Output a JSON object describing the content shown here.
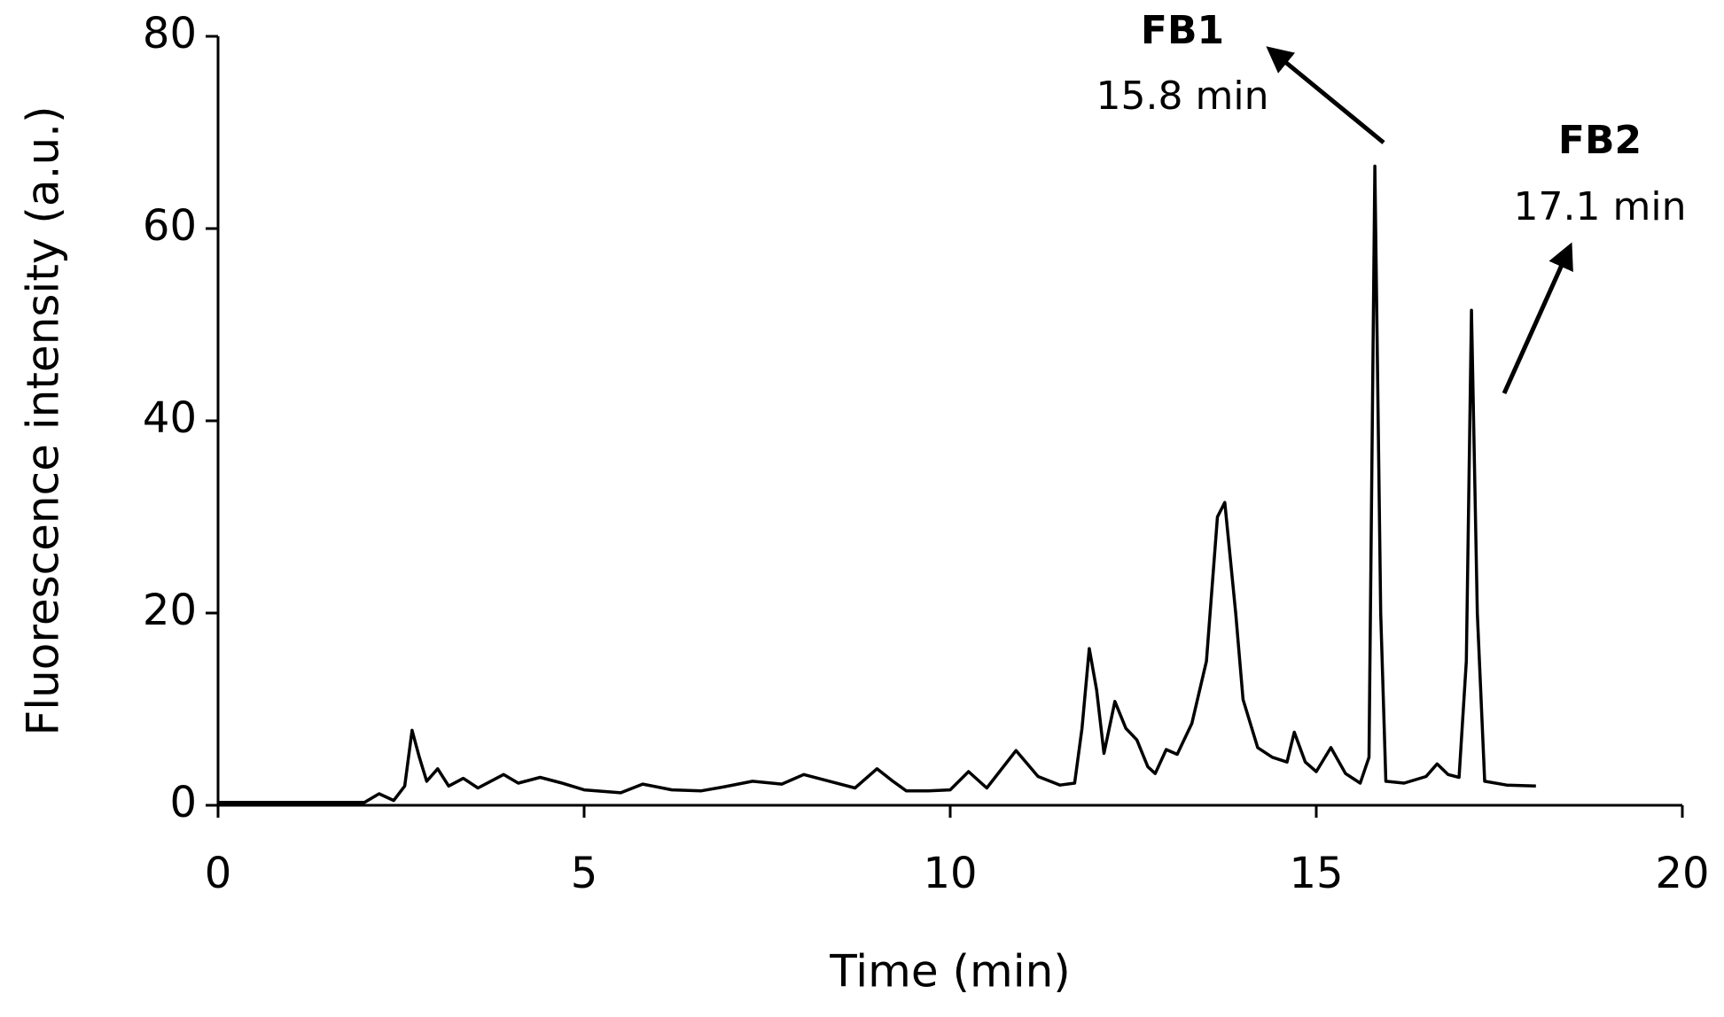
{
  "chart_data": {
    "type": "line",
    "x_label": "Time (min)",
    "y_label": "Fluorescence intensity (a.u.)",
    "x": [
      0,
      2.0,
      2.2,
      2.4,
      2.55,
      2.65,
      2.75,
      2.85,
      3.0,
      3.15,
      3.35,
      3.55,
      3.9,
      4.1,
      4.4,
      4.7,
      5.0,
      5.5,
      5.8,
      6.2,
      6.6,
      6.9,
      7.3,
      7.7,
      8.0,
      8.3,
      8.7,
      9.0,
      9.2,
      9.4,
      9.7,
      10.0,
      10.25,
      10.5,
      10.9,
      11.2,
      11.5,
      11.7,
      11.8,
      11.9,
      12.0,
      12.1,
      12.25,
      12.4,
      12.55,
      12.7,
      12.8,
      12.95,
      13.1,
      13.3,
      13.5,
      13.65,
      13.75,
      13.9,
      14.0,
      14.2,
      14.4,
      14.6,
      14.7,
      14.85,
      15.0,
      15.2,
      15.4,
      15.6,
      15.72,
      15.8,
      15.88,
      15.95,
      16.2,
      16.5,
      16.65,
      16.8,
      16.95,
      17.05,
      17.12,
      17.2,
      17.3,
      17.6,
      18.0
    ],
    "values": [
      0.3,
      0.3,
      1.2,
      0.5,
      2,
      7.8,
      5,
      2.5,
      3.8,
      2,
      2.8,
      1.8,
      3.2,
      2.3,
      2.9,
      2.3,
      1.6,
      1.3,
      2.2,
      1.6,
      1.5,
      1.9,
      2.5,
      2.2,
      3.2,
      2.6,
      1.8,
      3.8,
      2.6,
      1.5,
      1.5,
      1.6,
      3.5,
      1.8,
      5.7,
      3,
      2.1,
      2.3,
      8,
      16.3,
      12,
      5.4,
      10.8,
      8,
      6.8,
      4,
      3.3,
      5.8,
      5.3,
      8.5,
      15,
      30,
      31.5,
      20,
      11,
      6,
      5,
      4.5,
      7.6,
      4.5,
      3.5,
      6,
      3.3,
      2.3,
      5,
      66.5,
      20,
      2.5,
      2.3,
      3,
      4.3,
      3.2,
      2.9,
      15,
      51.5,
      20,
      2.5,
      2.1,
      2.0
    ],
    "color": "#000000",
    "xlim": [
      0,
      20
    ],
    "xticks": [
      0,
      5,
      10,
      15,
      20
    ],
    "ylim": [
      0,
      80
    ],
    "yticks": [
      0,
      20,
      40,
      60,
      80
    ],
    "annotations": [
      {
        "label": "FB1",
        "text": "15.8 min"
      },
      {
        "label": "FB2",
        "text": "17.1 min"
      }
    ]
  }
}
